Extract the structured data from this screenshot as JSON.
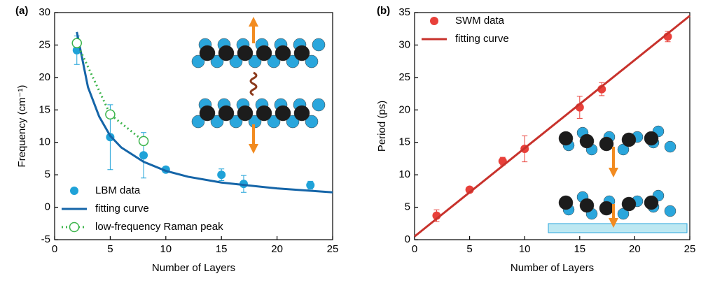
{
  "chart_data": [
    {
      "type": "scatter",
      "panel_label": "(a)",
      "xlabel": "Number of Layers",
      "ylabel": "Frequency (cm⁻¹)",
      "xlim": [
        0,
        25
      ],
      "ylim": [
        -5,
        30
      ],
      "xticks": [
        0,
        5,
        10,
        15,
        20,
        25
      ],
      "yticks": [
        -5,
        0,
        5,
        10,
        15,
        20,
        25,
        30
      ],
      "legend": "lower left",
      "series": [
        {
          "name": "LBM data",
          "type": "errorbar",
          "color": "#1fa2d8",
          "x": [
            2,
            5,
            8,
            10,
            15,
            17,
            23
          ],
          "values": [
            24.2,
            10.8,
            8.0,
            5.8,
            5.0,
            3.6,
            3.4
          ],
          "errors": [
            2.2,
            5.0,
            3.5,
            0.4,
            0.9,
            1.3,
            0.6
          ]
        },
        {
          "name": "fitting curve",
          "type": "line",
          "color": "#1565a8",
          "x": [
            2,
            3,
            4,
            5,
            6,
            8,
            10,
            12,
            15,
            20,
            25
          ],
          "values": [
            27,
            18.5,
            14,
            11,
            9.2,
            7,
            5.6,
            4.7,
            3.8,
            2.9,
            2.3
          ]
        },
        {
          "name": "low-frequency Raman peak",
          "type": "dotted-line",
          "color": "#3cb44b",
          "x": [
            2,
            5,
            8
          ],
          "values": [
            25.3,
            14.3,
            10.2
          ]
        }
      ]
    },
    {
      "type": "scatter",
      "panel_label": "(b)",
      "xlabel": "Number of Layers",
      "ylabel": "Period (ps)",
      "xlim": [
        0,
        25
      ],
      "ylim": [
        0,
        35
      ],
      "xticks": [
        0,
        5,
        10,
        15,
        20,
        25
      ],
      "yticks": [
        0,
        5,
        10,
        15,
        20,
        25,
        30,
        35
      ],
      "legend": "upper left",
      "series": [
        {
          "name": "SWM data",
          "type": "errorbar",
          "color": "#e8403a",
          "x": [
            2,
            5,
            8,
            10,
            15,
            17,
            23
          ],
          "values": [
            3.7,
            7.7,
            12.1,
            14.0,
            20.4,
            23.2,
            31.3
          ],
          "errors": [
            0.9,
            0.3,
            0.6,
            2.0,
            1.7,
            1.0,
            0.8
          ]
        },
        {
          "name": "fitting curve",
          "type": "line",
          "color": "#c8322c",
          "x": [
            0,
            25
          ],
          "values": [
            0.5,
            34.5
          ]
        }
      ]
    }
  ]
}
